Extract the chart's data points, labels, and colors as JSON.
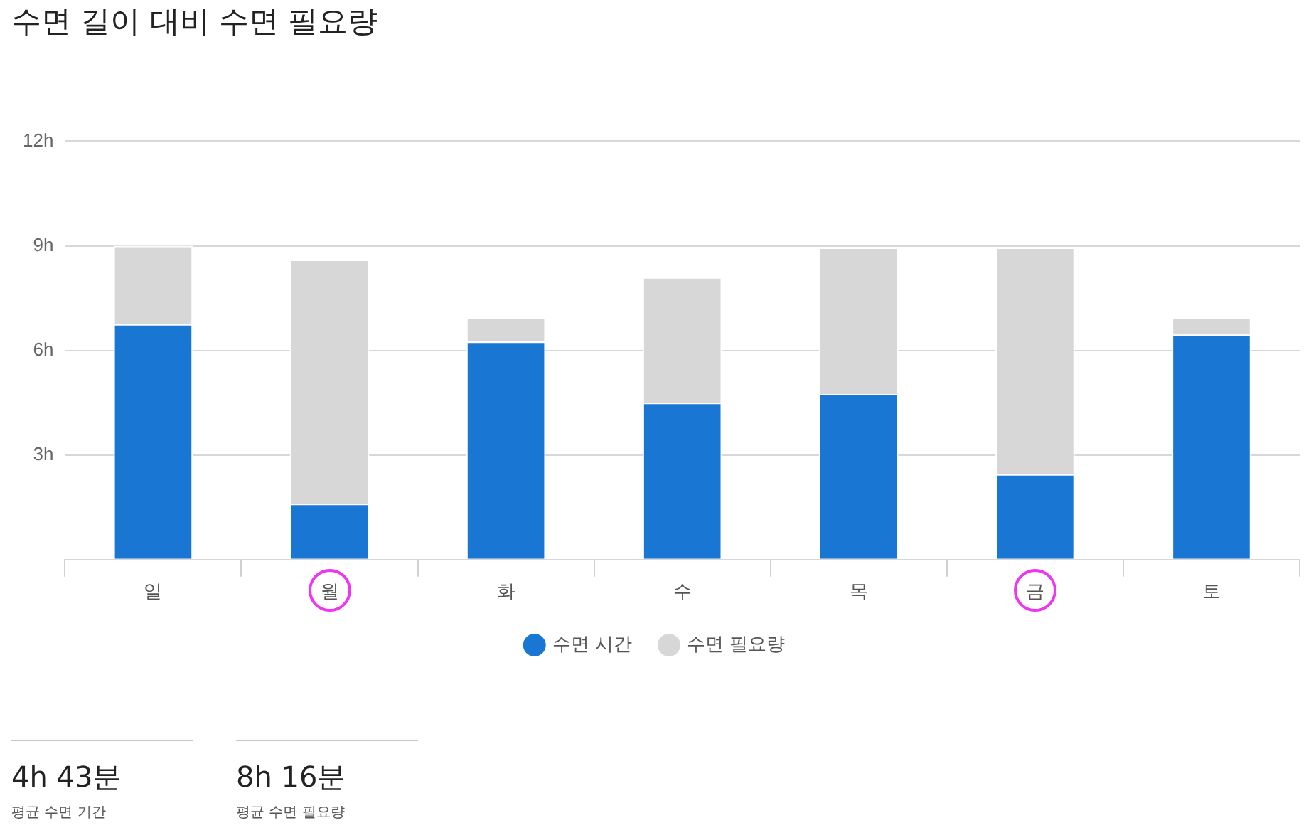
{
  "chart_data": {
    "type": "bar",
    "title": "수면 길이 대비 수면 필요량",
    "categories": [
      "일",
      "월",
      "화",
      "수",
      "목",
      "금",
      "토"
    ],
    "series": [
      {
        "name": "수면 시간",
        "color": "#1976d2",
        "values": [
          6.75,
          1.6,
          6.25,
          4.5,
          4.75,
          2.45,
          6.45
        ]
      },
      {
        "name": "수면 필요량",
        "color": "#d7d7d7",
        "values": [
          2.25,
          7.0,
          0.7,
          3.6,
          4.2,
          6.5,
          0.5
        ]
      }
    ],
    "stacked": true,
    "ylim": [
      0,
      12
    ],
    "yticks": [
      {
        "value": 0,
        "label": null
      },
      {
        "value": 3,
        "label": "3h"
      },
      {
        "value": 6,
        "label": "6h"
      },
      {
        "value": 9,
        "label": "9h"
      },
      {
        "value": 12,
        "label": "12h"
      }
    ],
    "grid": "y",
    "legend": "bottom",
    "annotations": [
      "4h 43분",
      "평균 수면 기간",
      "8h 16분",
      "평균 수면 필요량"
    ]
  }
}
